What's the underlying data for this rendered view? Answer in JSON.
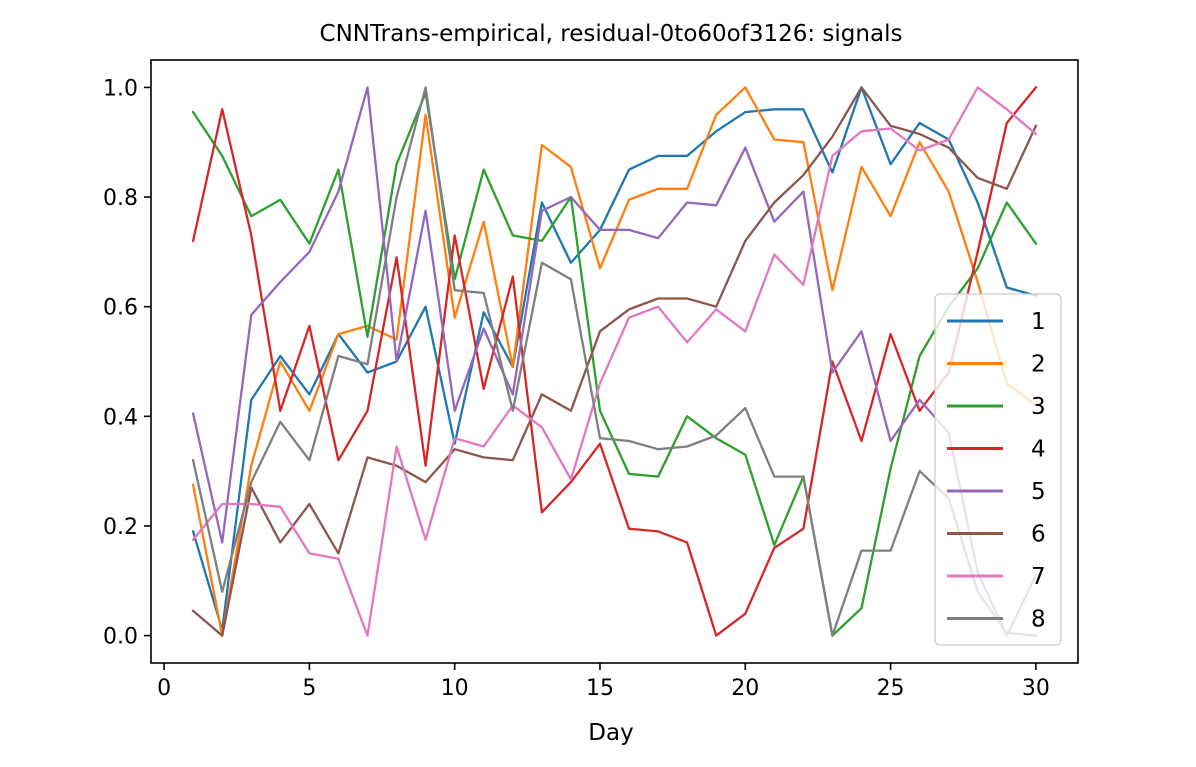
{
  "chart_data": {
    "type": "line",
    "title": "CNNTrans-empirical, residual-0to60of3126: signals",
    "xlabel": "Day",
    "ylabel": "",
    "xlim": [
      -0.45,
      31.45
    ],
    "ylim": [
      -0.05,
      1.05
    ],
    "xticks": [
      0,
      5,
      10,
      15,
      20,
      25,
      30
    ],
    "yticks": [
      0.0,
      0.2,
      0.4,
      0.6,
      0.8,
      1.0
    ],
    "xtick_labels": [
      "0",
      "5",
      "10",
      "15",
      "20",
      "25",
      "30"
    ],
    "ytick_labels": [
      "0.0",
      "0.2",
      "0.4",
      "0.6",
      "0.8",
      "1.0"
    ],
    "grid": false,
    "legend_position": "right-bottom",
    "x": [
      1,
      2,
      3,
      4,
      5,
      6,
      7,
      8,
      9,
      10,
      11,
      12,
      13,
      14,
      15,
      16,
      17,
      18,
      19,
      20,
      21,
      22,
      23,
      24,
      25,
      26,
      27,
      28,
      29,
      30
    ],
    "series": [
      {
        "name": "1",
        "color": "#1f77b4",
        "values": [
          0.19,
          0.01,
          0.43,
          0.51,
          0.44,
          0.55,
          0.48,
          0.5,
          0.6,
          0.35,
          0.59,
          0.49,
          0.79,
          0.68,
          0.74,
          0.85,
          0.875,
          0.875,
          0.92,
          0.955,
          0.96,
          0.96,
          0.845,
          1.0,
          0.86,
          0.935,
          0.905,
          0.79,
          0.635,
          0.62
        ]
      },
      {
        "name": "2",
        "color": "#ff7f0e",
        "values": [
          0.275,
          0.0,
          0.31,
          0.5,
          0.41,
          0.55,
          0.565,
          0.54,
          0.95,
          0.58,
          0.755,
          0.49,
          0.895,
          0.855,
          0.67,
          0.795,
          0.815,
          0.815,
          0.95,
          1.0,
          0.905,
          0.9,
          0.63,
          0.855,
          0.765,
          0.9,
          0.81,
          0.645,
          0.46,
          0.42
        ]
      },
      {
        "name": "3",
        "color": "#2ca02c",
        "values": [
          0.955,
          0.875,
          0.765,
          0.795,
          0.715,
          0.85,
          0.545,
          0.86,
          0.99,
          0.65,
          0.85,
          0.73,
          0.72,
          0.8,
          0.41,
          0.295,
          0.29,
          0.4,
          0.36,
          0.33,
          0.165,
          0.29,
          0.0,
          0.05,
          0.305,
          0.51,
          0.6,
          0.67,
          0.79,
          0.715
        ]
      },
      {
        "name": "4",
        "color": "#d62728",
        "values": [
          0.72,
          0.96,
          0.73,
          0.41,
          0.565,
          0.32,
          0.41,
          0.69,
          0.31,
          0.73,
          0.45,
          0.655,
          0.225,
          0.28,
          0.35,
          0.195,
          0.19,
          0.17,
          0.0,
          0.04,
          0.16,
          0.195,
          0.5,
          0.355,
          0.55,
          0.41,
          0.48,
          0.7,
          0.935,
          1.0
        ]
      },
      {
        "name": "5",
        "color": "#9467bd",
        "values": [
          0.405,
          0.17,
          0.585,
          0.645,
          0.7,
          0.81,
          1.0,
          0.5,
          0.775,
          0.41,
          0.56,
          0.44,
          0.775,
          0.8,
          0.74,
          0.74,
          0.725,
          0.79,
          0.785,
          0.89,
          0.755,
          0.81,
          0.48,
          0.555,
          0.355,
          0.43,
          0.37,
          0.115,
          0.0,
          0.11
        ]
      },
      {
        "name": "6",
        "color": "#8c564b",
        "values": [
          0.045,
          0.0,
          0.27,
          0.17,
          0.24,
          0.15,
          0.325,
          0.31,
          0.28,
          0.34,
          0.325,
          0.32,
          0.44,
          0.41,
          0.555,
          0.595,
          0.615,
          0.615,
          0.6,
          0.72,
          0.79,
          0.84,
          0.91,
          1.0,
          0.93,
          0.915,
          0.89,
          0.835,
          0.815,
          0.93
        ]
      },
      {
        "name": "7",
        "color": "#e377c2",
        "values": [
          0.175,
          0.24,
          0.24,
          0.235,
          0.15,
          0.14,
          0.0,
          0.345,
          0.175,
          0.36,
          0.345,
          0.42,
          0.38,
          0.285,
          0.46,
          0.58,
          0.6,
          0.535,
          0.595,
          0.555,
          0.695,
          0.64,
          0.875,
          0.92,
          0.925,
          0.885,
          0.905,
          1.0,
          0.96,
          0.915
        ]
      },
      {
        "name": "8",
        "color": "#7f7f7f",
        "values": [
          0.32,
          0.08,
          0.28,
          0.39,
          0.32,
          0.51,
          0.495,
          0.8,
          1.0,
          0.63,
          0.625,
          0.41,
          0.68,
          0.65,
          0.36,
          0.355,
          0.34,
          0.345,
          0.365,
          0.415,
          0.29,
          0.29,
          0.0,
          0.155,
          0.155,
          0.3,
          0.25,
          0.08,
          0.005,
          0.0
        ]
      }
    ]
  }
}
